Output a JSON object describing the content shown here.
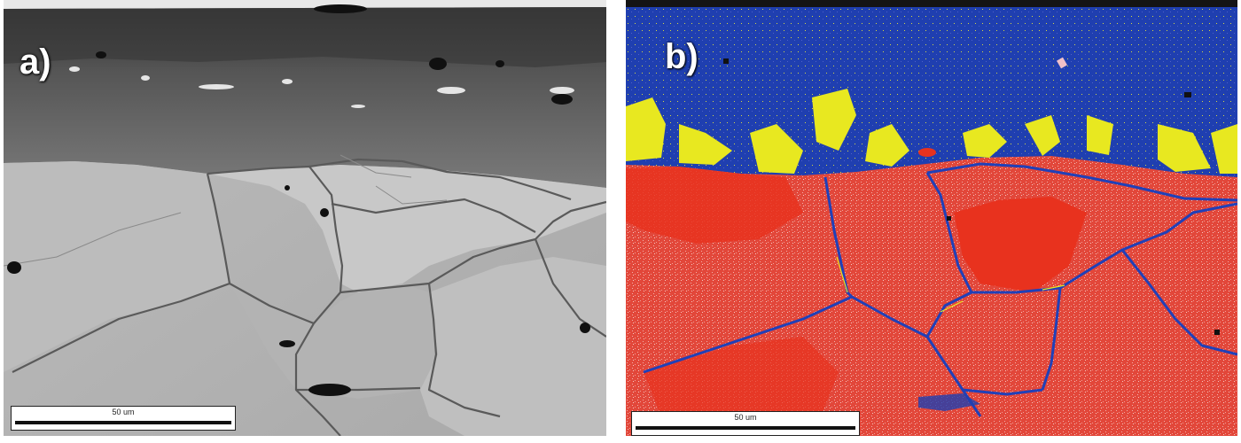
{
  "panels": [
    {
      "label": "a)",
      "type": "grayscale micrograph",
      "scale_bar_text": "50 um"
    },
    {
      "label": "b)",
      "type": "phase map",
      "scale_bar_text": "50 um",
      "colors": {
        "blue_phase": "#1f3fb0",
        "yellow_phase": "#e8e820",
        "red_phase": "#e2473a",
        "red_dense": "#e8321e"
      }
    }
  ]
}
